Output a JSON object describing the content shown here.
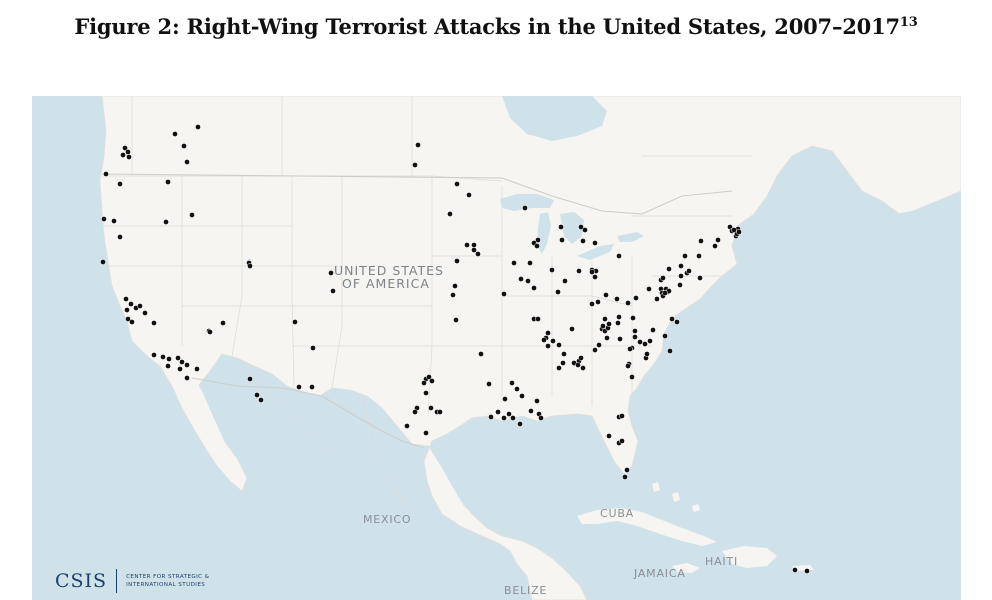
{
  "title": {
    "text": "Figure 2: Right-Wing Terrorist Attacks in the United States, 2007–2017",
    "footnote": "13"
  },
  "map": {
    "labels": {
      "usa_line1": "UNITED STATES",
      "usa_line2": "OF AMERICA",
      "mexico": "MEXICO",
      "cuba": "CUBA",
      "haiti": "HAITI",
      "jamaica": "JAMAICA",
      "belize": "BELIZE"
    },
    "colors": {
      "water": "#cfe2ea",
      "land": "#f6f5f2",
      "border": "#d8d6d1",
      "marker": "#111111"
    }
  },
  "logo": {
    "name": "CSIS",
    "line1": "CENTER FOR STRATEGIC &",
    "line2": "INTERNATIONAL STUDIES"
  }
}
